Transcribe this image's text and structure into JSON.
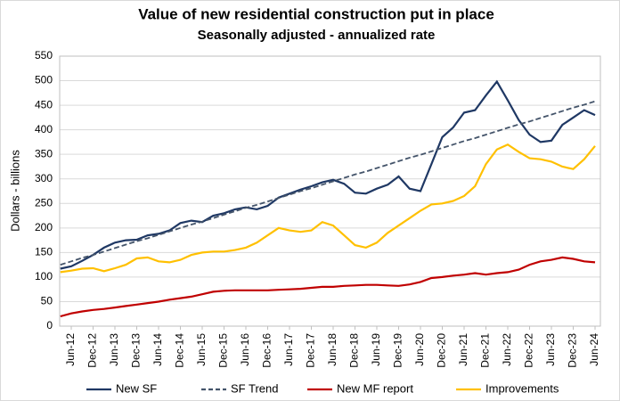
{
  "chart_data": {
    "type": "line",
    "title": "Value of new residential construction put in place",
    "subtitle": "Seasonally adjusted - annualized rate",
    "y_label": "Dollars - billions",
    "categories": [
      null,
      "Jun-12",
      null,
      "Dec-12",
      null,
      "Jun-13",
      null,
      "Dec-13",
      null,
      "Jun-14",
      null,
      "Dec-14",
      null,
      "Jun-15",
      null,
      "Dec-15",
      null,
      "Jun-16",
      null,
      "Dec-16",
      null,
      "Jun-17",
      null,
      "Dec-17",
      null,
      "Jun-18",
      null,
      "Dec-18",
      null,
      "Jun-19",
      null,
      "Dec-19",
      null,
      "Jun-20",
      null,
      "Dec-20",
      null,
      "Jun-21",
      null,
      "Dec-21",
      null,
      "Jun-22",
      null,
      "Dec-22",
      null,
      "Jun-23",
      null,
      "Dec-23",
      null,
      "Jun-24"
    ],
    "series": [
      {
        "name": "New SF",
        "color": "#1f3864",
        "dash": false,
        "values": [
          117,
          122,
          133,
          145,
          160,
          170,
          175,
          176,
          185,
          188,
          195,
          210,
          215,
          212,
          225,
          230,
          238,
          242,
          238,
          245,
          262,
          270,
          278,
          285,
          293,
          298,
          290,
          272,
          270,
          280,
          288,
          305,
          280,
          275,
          330,
          385,
          405,
          435,
          440,
          470,
          498,
          460,
          420,
          390,
          375,
          378,
          410,
          425,
          440,
          430
        ]
      },
      {
        "name": "SF Trend",
        "color": "#44546a",
        "dash": true,
        "values": [
          125,
          132,
          139,
          145,
          152,
          159,
          166,
          173,
          179,
          186,
          193,
          200,
          207,
          213,
          220,
          227,
          234,
          241,
          247,
          254,
          261,
          268,
          275,
          281,
          288,
          295,
          302,
          309,
          315,
          322,
          329,
          336,
          343,
          349,
          356,
          363,
          370,
          377,
          383,
          390,
          397,
          404,
          411,
          417,
          424,
          431,
          438,
          445,
          451,
          458
        ]
      },
      {
        "name": "New MF report",
        "color": "#c00000",
        "dash": false,
        "values": [
          20,
          26,
          30,
          33,
          35,
          38,
          41,
          44,
          47,
          50,
          54,
          57,
          60,
          65,
          70,
          72,
          73,
          73,
          73,
          73,
          74,
          75,
          76,
          78,
          80,
          80,
          82,
          83,
          84,
          84,
          83,
          82,
          85,
          90,
          98,
          100,
          103,
          105,
          108,
          105,
          108,
          110,
          115,
          125,
          132,
          135,
          140,
          137,
          132,
          130
        ]
      },
      {
        "name": "Improvements",
        "color": "#ffc000",
        "dash": false,
        "values": [
          110,
          113,
          117,
          118,
          112,
          118,
          125,
          138,
          140,
          132,
          130,
          135,
          145,
          150,
          152,
          152,
          155,
          160,
          170,
          185,
          200,
          195,
          192,
          195,
          212,
          205,
          185,
          165,
          160,
          170,
          190,
          205,
          220,
          235,
          248,
          250,
          255,
          265,
          285,
          330,
          360,
          370,
          355,
          342,
          340,
          335,
          325,
          320,
          340,
          367
        ]
      }
    ],
    "ylim": [
      0,
      550
    ],
    "yticks": [
      0,
      50,
      100,
      150,
      200,
      250,
      300,
      350,
      400,
      450,
      500,
      550
    ],
    "grid": true,
    "legend": "bottom"
  }
}
